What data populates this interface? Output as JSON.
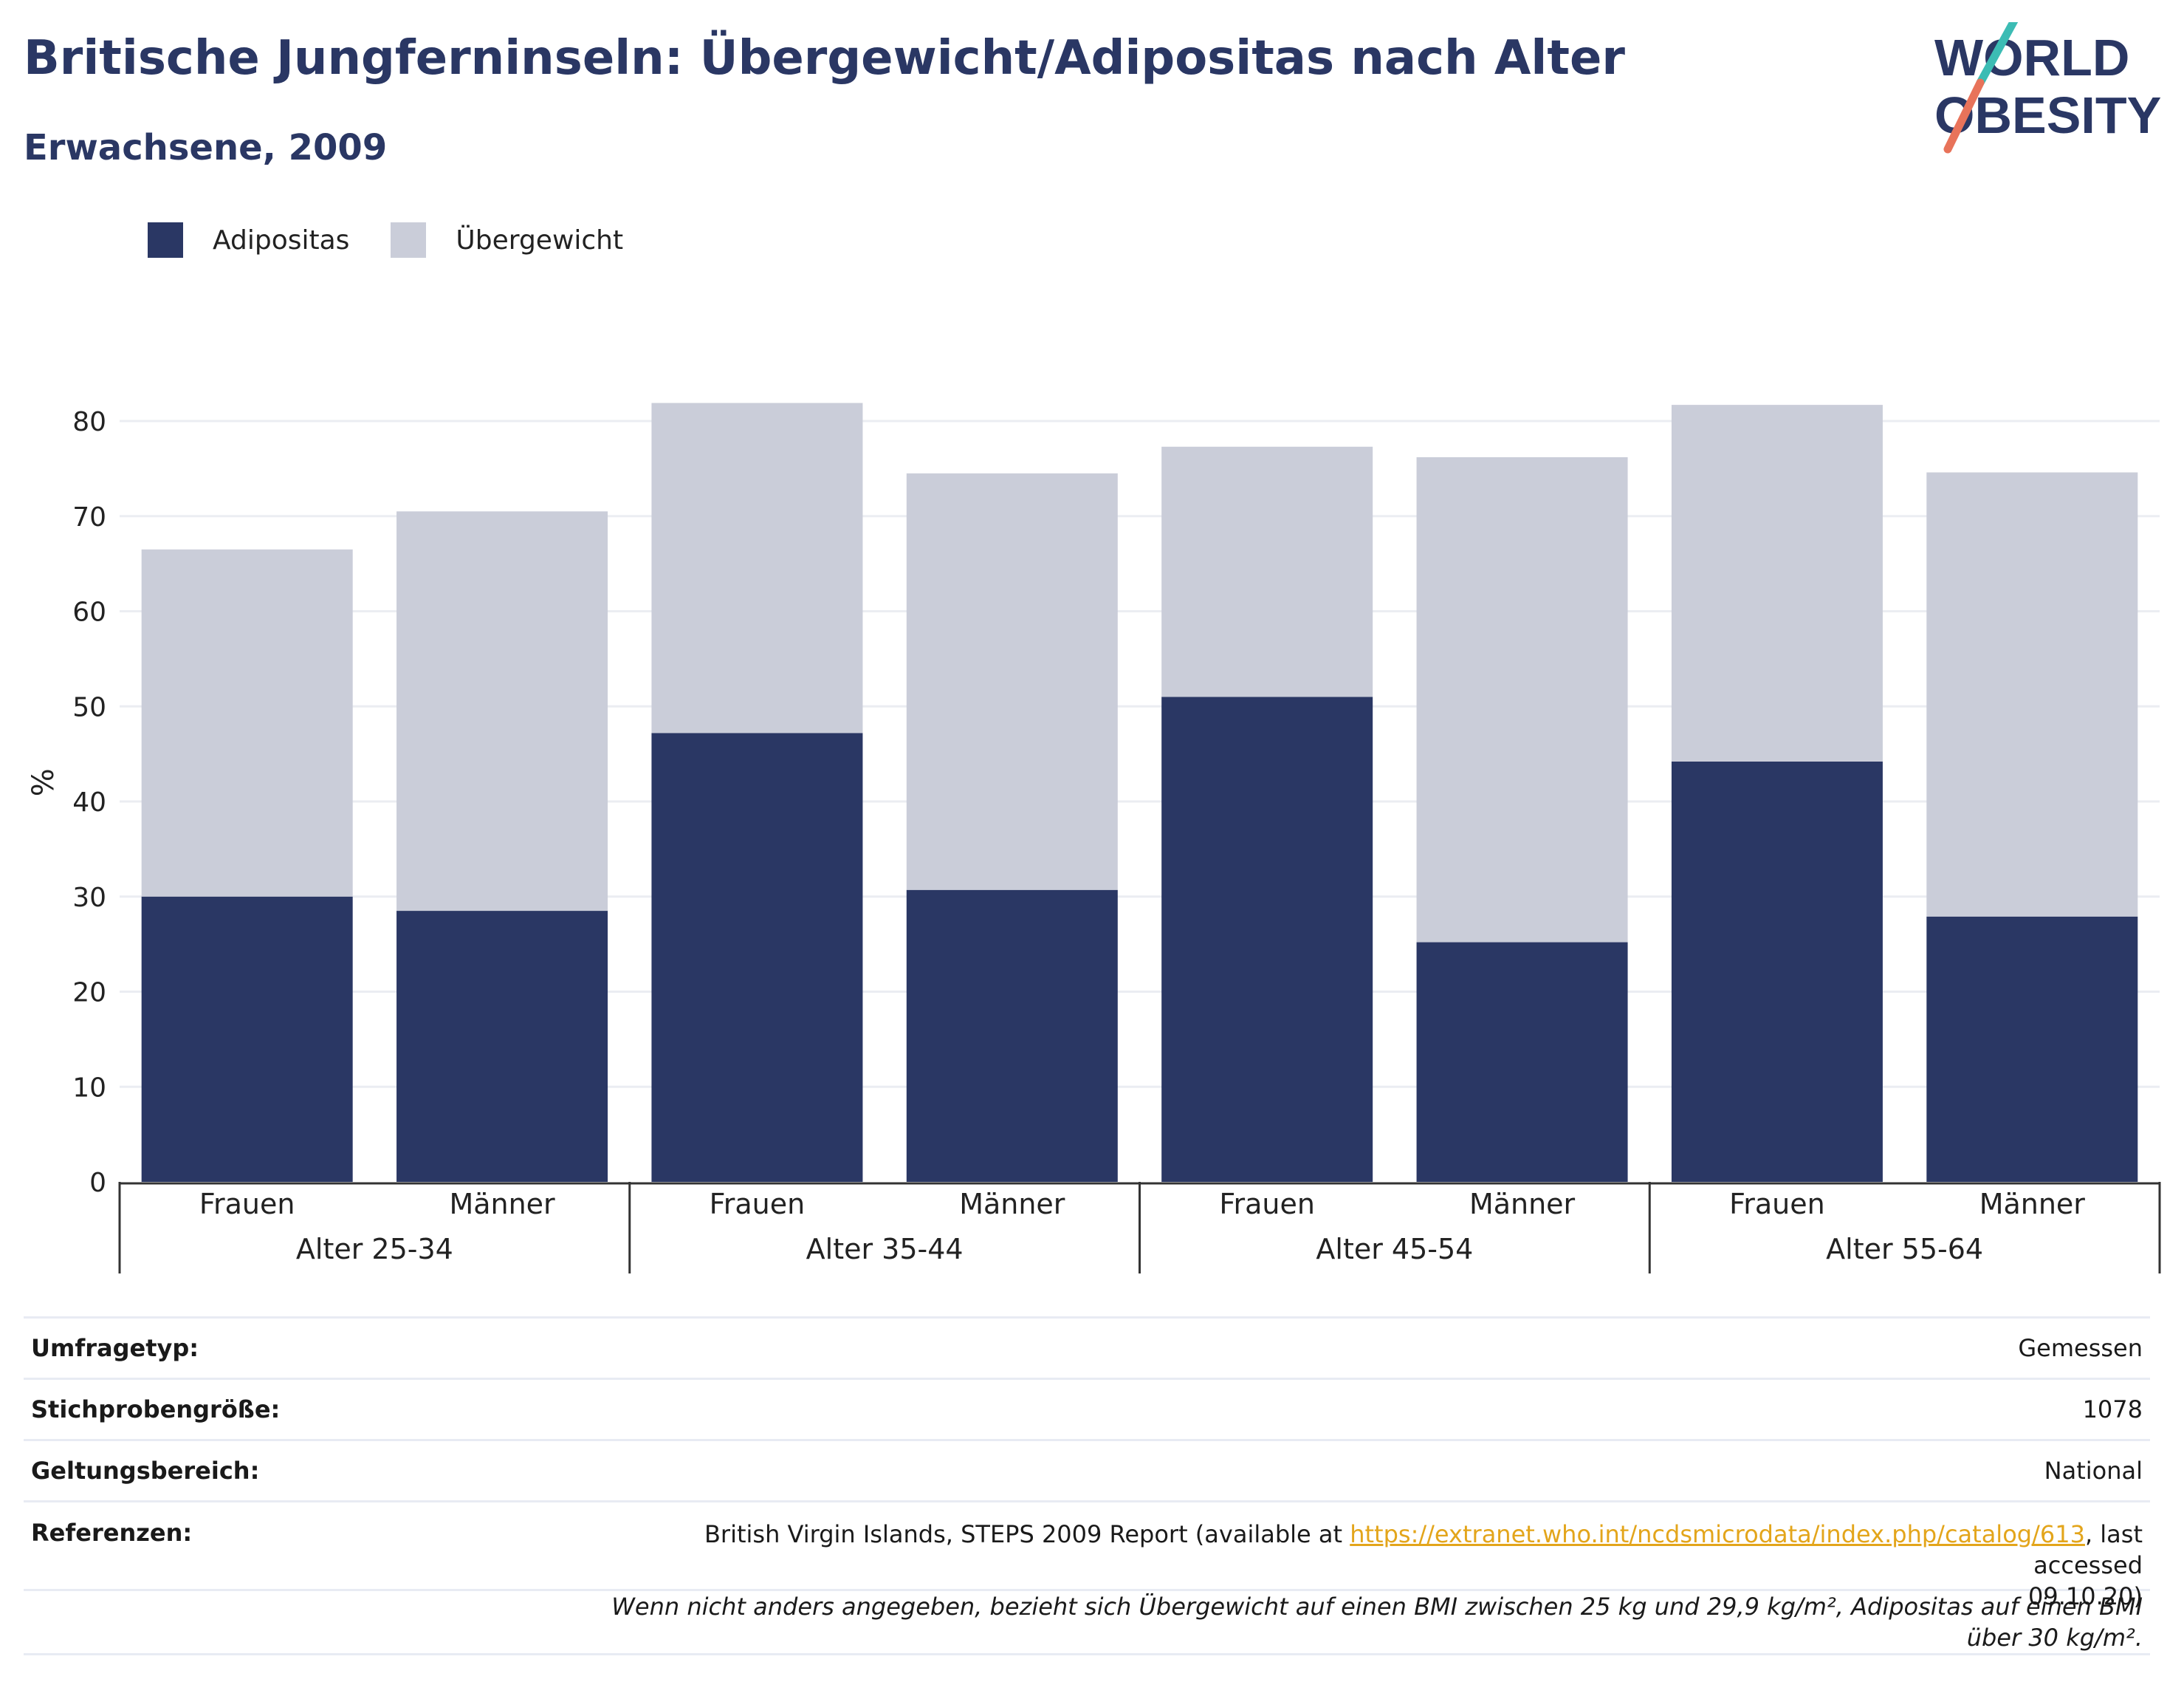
{
  "header": {
    "title": "Britische Jungferninseln: Übergewicht/Adipositas nach Alter",
    "subtitle": "Erwachsene, 2009"
  },
  "logo": {
    "line1": "WORLD",
    "line2": "OBESITY"
  },
  "colors": {
    "adipositas": "#2a3764",
    "uebergewicht": "#cacdd9",
    "brand": "#2a3764",
    "accent_teal": "#3cbcb4",
    "accent_coral": "#e8735a",
    "link": "#e3a51b"
  },
  "legend": [
    {
      "label": "Adipositas",
      "color": "#2a3764"
    },
    {
      "label": "Übergewicht",
      "color": "#cacdd9"
    }
  ],
  "chart_data": {
    "type": "bar",
    "stacked": true,
    "ylabel": "%",
    "xlabel": "",
    "ylim": [
      0,
      85
    ],
    "yticks": [
      0,
      10,
      20,
      30,
      40,
      50,
      60,
      70,
      80
    ],
    "grid": true,
    "legend_position": "top-left",
    "groups": [
      "Alter 25-34",
      "Alter 35-44",
      "Alter 45-54",
      "Alter 55-64"
    ],
    "categories": [
      "Frauen",
      "Männer",
      "Frauen",
      "Männer",
      "Frauen",
      "Männer",
      "Frauen",
      "Männer"
    ],
    "series": [
      {
        "name": "Adipositas",
        "values": [
          30.0,
          28.5,
          47.2,
          30.7,
          51.0,
          25.2,
          44.2,
          27.9
        ]
      },
      {
        "name": "Übergewicht",
        "values": [
          36.5,
          42.0,
          34.7,
          43.8,
          26.3,
          51.0,
          37.5,
          46.7
        ]
      }
    ]
  },
  "meta": {
    "rows": [
      {
        "key": "Umfragetyp:",
        "value": "Gemessen"
      },
      {
        "key": "Stichprobengröße:",
        "value": "1078"
      },
      {
        "key": "Geltungsbereich:",
        "value": "National"
      }
    ],
    "ref_key": "Referenzen:",
    "ref_before": "British Virgin Islands, STEPS 2009 Report (available at ",
    "ref_link": "https://extranet.who.int/ncdsmicrodata/index.php/catalog/613",
    "ref_after": ", last accessed",
    "ref_date": "09.10.20)",
    "note": "Wenn nicht anders angegeben, bezieht sich Übergewicht auf einen BMI zwischen 25 kg und 29,9 kg/m², Adipositas auf einen BMI über 30 kg/m²."
  }
}
